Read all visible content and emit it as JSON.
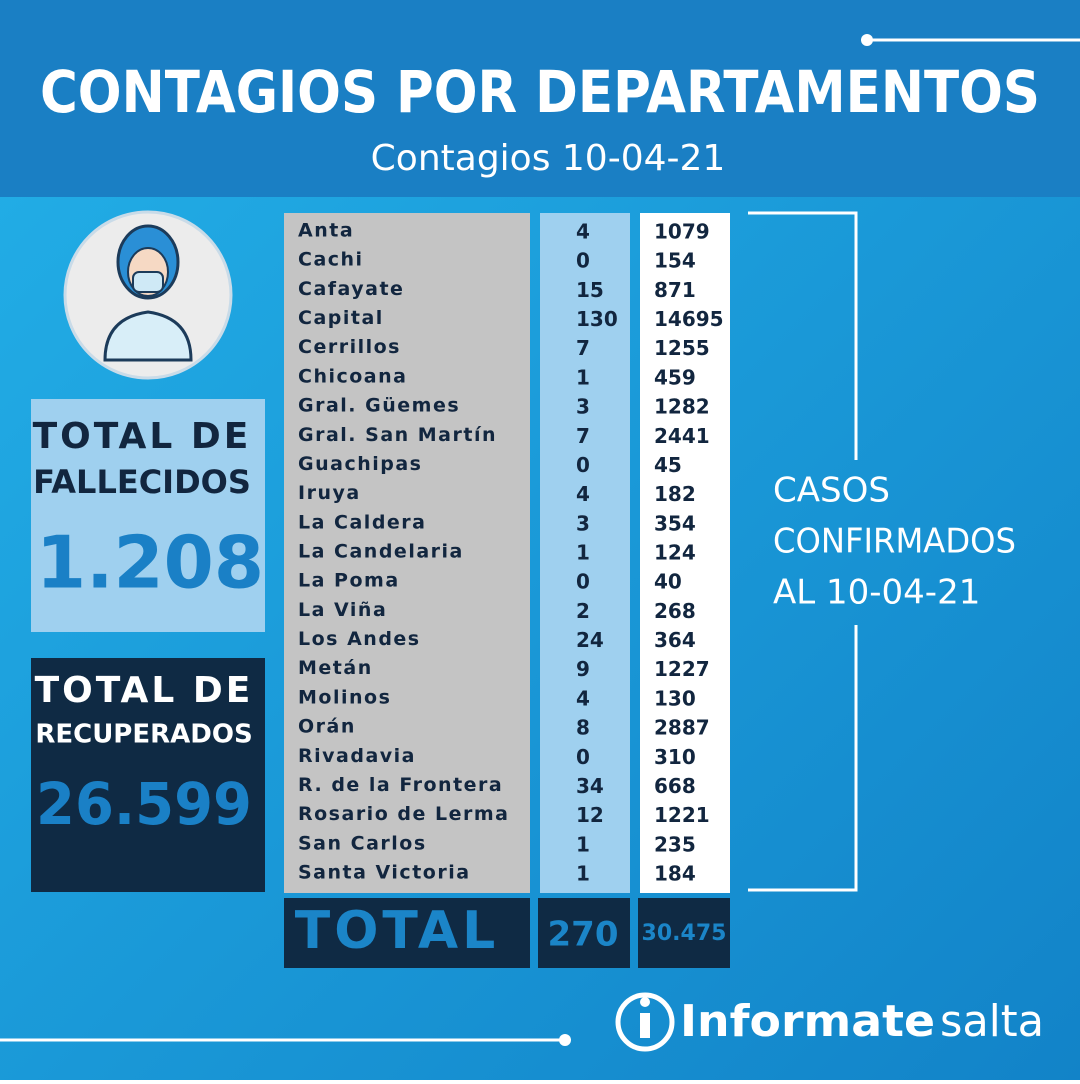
{
  "header": {
    "title": "CONTAGIOS POR DEPARTAMENTOS",
    "subtitle": "Contagios 10-04-21"
  },
  "deaths": {
    "label_line1": "TOTAL DE",
    "label_line2": "FALLECIDOS",
    "value": "1.208"
  },
  "recovered": {
    "label_line1": "TOTAL DE",
    "label_line2": "RECUPERADOS",
    "value": "26.599"
  },
  "table": {
    "rows": [
      [
        "Anta",
        4,
        1079
      ],
      [
        "Cachi",
        0,
        154
      ],
      [
        "Cafayate",
        15,
        871
      ],
      [
        "Capital",
        130,
        14695
      ],
      [
        "Cerrillos",
        7,
        1255
      ],
      [
        "Chicoana",
        1,
        459
      ],
      [
        "Gral. Güemes",
        3,
        1282
      ],
      [
        "Gral. San Martín",
        7,
        2441
      ],
      [
        "Guachipas",
        0,
        45
      ],
      [
        "Iruya",
        4,
        182
      ],
      [
        "La Caldera",
        3,
        354
      ],
      [
        "La Candelaria",
        1,
        124
      ],
      [
        "La Poma",
        0,
        40
      ],
      [
        "La Viña",
        2,
        268
      ],
      [
        "Los Andes",
        24,
        364
      ],
      [
        "Metán",
        9,
        1227
      ],
      [
        "Molinos",
        4,
        130
      ],
      [
        "Orán",
        8,
        2887
      ],
      [
        "Rivadavia",
        0,
        310
      ],
      [
        "R. de la Frontera",
        34,
        668
      ],
      [
        "Rosario de Lerma",
        12,
        1221
      ],
      [
        "San Carlos",
        1,
        235
      ],
      [
        "Santa Victoria",
        1,
        184
      ]
    ],
    "total": [
      "TOTAL",
      270,
      "30.475"
    ]
  },
  "confirmed_note": {
    "lines": [
      "CASOS",
      "CONFIRMADOS",
      "AL 10-04-21"
    ]
  },
  "logo": {
    "brand": "Informate",
    "region": "salta"
  }
}
